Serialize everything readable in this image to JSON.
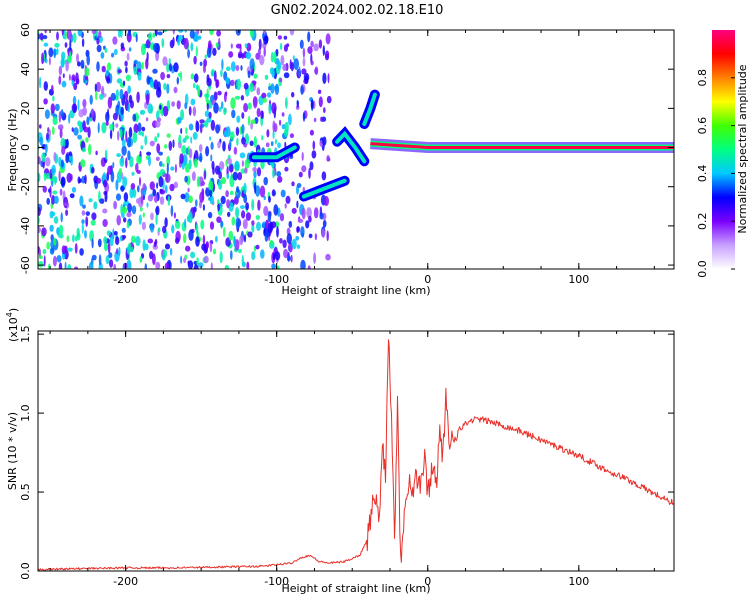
{
  "title": "GN02.2024.002.02.18.E10",
  "chart_data": [
    {
      "type": "heatmap",
      "title": "GN02.2024.002.02.18.E10",
      "xlabel": "Height of straight line (km)",
      "ylabel": "Frequency (Hz)",
      "xlim": [
        -258,
        163
      ],
      "ylim": [
        -62,
        60
      ],
      "x_ticks": [
        -200,
        -100,
        0,
        100
      ],
      "x_tick_labels": [
        "-200",
        "-100",
        "0",
        "100"
      ],
      "y_ticks": [
        60,
        40,
        20,
        0,
        -20,
        -40,
        -60
      ],
      "y_tick_labels": [
        "60",
        "40",
        "20",
        "0",
        "-20",
        "-40",
        "-60"
      ],
      "colorbar": {
        "label": "Normalized spectral amplitude",
        "range": [
          0,
          1
        ],
        "ticks": [
          0.0,
          0.2,
          0.4,
          0.6,
          0.8
        ],
        "tick_labels": [
          "0.0",
          "0.2",
          "0.4",
          "0.6",
          "0.8"
        ],
        "colors": [
          "#ffffff",
          "#c8a0ff",
          "#7a00ff",
          "#0000ff",
          "#00c8ff",
          "#00ff80",
          "#40ff00",
          "#ffff00",
          "#ff8000",
          "#ff0000",
          "#ff0080"
        ]
      },
      "features": [
        {
          "name": "noise",
          "x_range": [
            -258,
            -65
          ],
          "y_range": [
            -60,
            60
          ],
          "amplitude": 0.15
        },
        {
          "name": "branch",
          "points": [
            [
              -115,
              -5
            ],
            [
              -100,
              -5
            ],
            [
              -88,
              0
            ]
          ],
          "amplitude": 0.35
        },
        {
          "name": "branch",
          "points": [
            [
              -82,
              -25
            ],
            [
              -72,
              -22
            ],
            [
              -55,
              -17
            ]
          ],
          "amplitude": 0.3
        },
        {
          "name": "branch",
          "points": [
            [
              -60,
              3
            ],
            [
              -55,
              7
            ],
            [
              -48,
              0
            ],
            [
              -42,
              -7
            ]
          ],
          "amplitude": 0.35
        },
        {
          "name": "branch",
          "points": [
            [
              -42,
              12
            ],
            [
              -38,
              20
            ],
            [
              -35,
              27
            ]
          ],
          "amplitude": 0.3
        },
        {
          "name": "carrier",
          "points": [
            [
              -38,
              2
            ],
            [
              0,
              0
            ],
            [
              163,
              0
            ]
          ],
          "amplitude": 0.95
        }
      ]
    },
    {
      "type": "line",
      "xlabel": "Height of straight line (km)",
      "ylabel": "SNR (10 * v/v)",
      "y_multiplier": "(x10",
      "y_multiplier_exp": "4",
      "y_multiplier_close": ")",
      "xlim": [
        -258,
        163
      ],
      "ylim": [
        0,
        1.52
      ],
      "x_ticks": [
        -200,
        -100,
        0,
        100
      ],
      "x_tick_labels": [
        "-200",
        "-100",
        "0",
        "100"
      ],
      "y_ticks": [
        0,
        0.5,
        1.0,
        1.5
      ],
      "y_tick_labels": [
        "0.0",
        "0.5",
        "1.0",
        "1.5"
      ],
      "series": [
        {
          "color": "#e8302a",
          "x": [
            -258,
            -230,
            -200,
            -170,
            -140,
            -110,
            -90,
            -85,
            -78,
            -72,
            -65,
            -55,
            -45,
            -40,
            -35,
            -32,
            -30,
            -28,
            -26,
            -24,
            -22,
            -20,
            -18,
            -15,
            -12,
            -10,
            -8,
            -5,
            -2,
            0,
            3,
            6,
            8,
            10,
            12,
            14,
            16,
            18,
            20,
            25,
            30,
            35,
            40,
            50,
            60,
            70,
            80,
            90,
            100,
            110,
            120,
            130,
            140,
            150,
            160,
            163
          ],
          "y": [
            0.01,
            0.015,
            0.02,
            0.02,
            0.025,
            0.03,
            0.05,
            0.08,
            0.1,
            0.06,
            0.05,
            0.06,
            0.1,
            0.2,
            0.5,
            0.3,
            0.85,
            0.6,
            1.5,
            1.0,
            0.2,
            1.1,
            0.05,
            0.45,
            0.6,
            0.5,
            0.6,
            0.55,
            0.7,
            0.5,
            0.65,
            0.6,
            0.9,
            0.7,
            1.15,
            0.75,
            0.82,
            0.85,
            0.9,
            0.93,
            0.96,
            0.96,
            0.95,
            0.92,
            0.89,
            0.85,
            0.81,
            0.77,
            0.73,
            0.68,
            0.63,
            0.59,
            0.54,
            0.49,
            0.44,
            0.43
          ]
        }
      ]
    }
  ]
}
